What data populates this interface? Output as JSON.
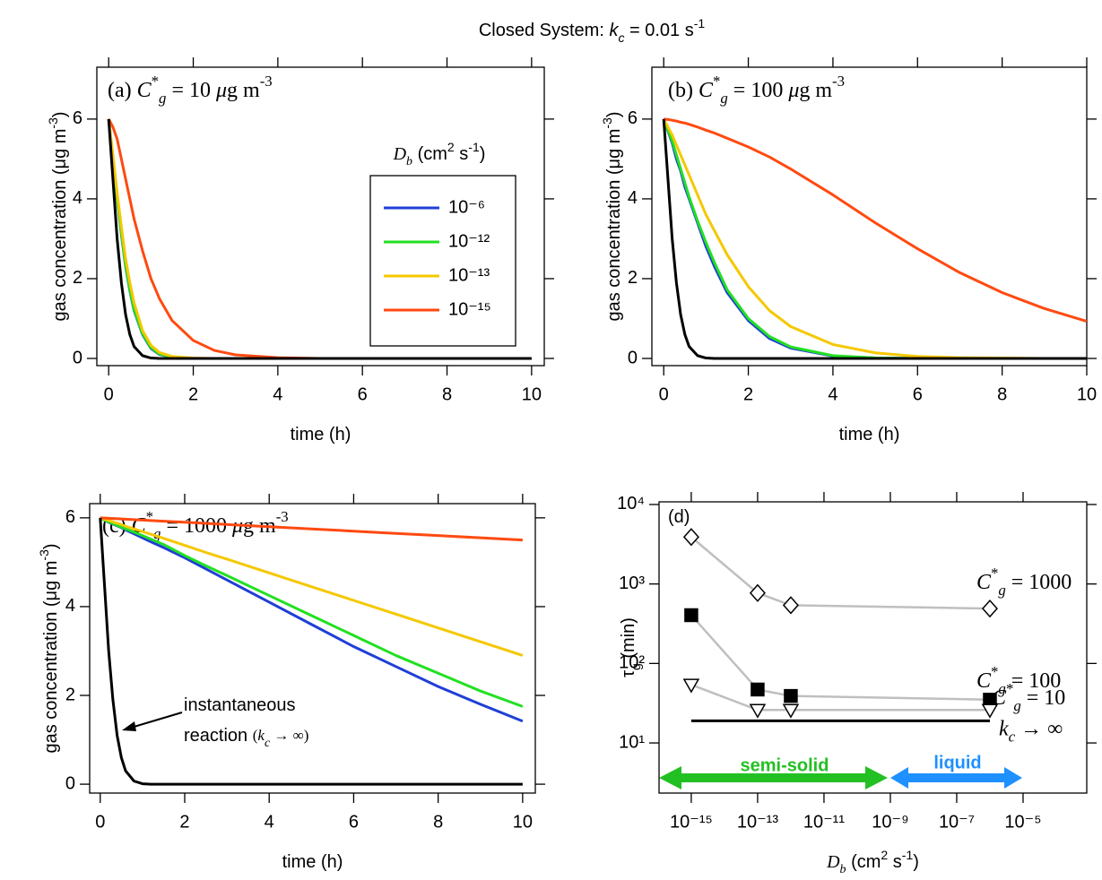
{
  "title": [
    {
      "text": "Closed System: "
    },
    {
      "text": "k",
      "style": "italic"
    },
    {
      "text": "c",
      "style": "italic sub"
    },
    {
      "text": " = 0.01 s"
    },
    {
      "text": "-1",
      "style": "sup"
    }
  ],
  "chart_data": [
    {
      "type": "line",
      "annotation": [
        {
          "text": "(a) "
        },
        {
          "text": "C",
          "style": "italic"
        },
        {
          "text": "*",
          "style": "sup"
        },
        {
          "text": "g",
          "style": "italic sub"
        },
        {
          "text": " = 10 "
        },
        {
          "text": "μ",
          "style": "italic"
        },
        {
          "text": "g m"
        },
        {
          "text": "-3",
          "style": "sup"
        }
      ],
      "xlabel": [
        {
          "text": "time (h)"
        }
      ],
      "ylabel": [
        {
          "text": "gas concentration (μg m"
        },
        {
          "text": "-3",
          "style": "sup"
        },
        {
          "text": ")"
        }
      ],
      "legend_title": [
        {
          "text": "D",
          "style": "italic serif"
        },
        {
          "text": "b",
          "style": "italic serif sub"
        },
        {
          "text": " (cm"
        },
        {
          "text": "2",
          "style": "sup"
        },
        {
          "text": " s"
        },
        {
          "text": "-1",
          "style": "sup"
        },
        {
          "text": ")"
        }
      ],
      "x": [
        0,
        0.1,
        0.2,
        0.3,
        0.4,
        0.5,
        0.6,
        0.8,
        1,
        1.2,
        1.5,
        2,
        2.5,
        3,
        4,
        5,
        6,
        7,
        8,
        9,
        10
      ],
      "series": [
        {
          "name": "10⁻⁶",
          "color": "#1f3fd6",
          "values": [
            6,
            5.0,
            4.0,
            3.1,
            2.3,
            1.7,
            1.2,
            0.6,
            0.25,
            0.1,
            0.03,
            0,
            0,
            0,
            0,
            0,
            0,
            0,
            0,
            0,
            0
          ]
        },
        {
          "name": "10⁻¹²",
          "color": "#22e022",
          "values": [
            6,
            5.02,
            4.03,
            3.13,
            2.33,
            1.73,
            1.23,
            0.62,
            0.27,
            0.11,
            0.03,
            0,
            0,
            0,
            0,
            0,
            0,
            0,
            0,
            0,
            0
          ]
        },
        {
          "name": "10⁻¹³",
          "color": "#f5c800",
          "values": [
            6,
            5.1,
            4.15,
            3.3,
            2.5,
            1.9,
            1.4,
            0.7,
            0.33,
            0.15,
            0.05,
            0.01,
            0,
            0,
            0,
            0,
            0,
            0,
            0,
            0,
            0
          ]
        },
        {
          "name": "10⁻¹⁵",
          "color": "#ff4a10",
          "values": [
            6,
            5.8,
            5.5,
            5.0,
            4.5,
            4.0,
            3.5,
            2.7,
            2.0,
            1.5,
            0.95,
            0.45,
            0.2,
            0.09,
            0.02,
            0,
            0,
            0,
            0,
            0,
            0
          ]
        },
        {
          "color": "#000000",
          "values": [
            6,
            4.5,
            3.0,
            1.9,
            1.1,
            0.6,
            0.3,
            0.07,
            0.01,
            0,
            0,
            0,
            0,
            0,
            0,
            0,
            0,
            0,
            0,
            0,
            0
          ]
        }
      ],
      "xlim": [
        -0.28,
        10.3
      ],
      "ylim": [
        -0.18,
        7.3
      ],
      "xticks": [
        0,
        2,
        4,
        6,
        8,
        10
      ],
      "yticks": [
        0,
        2,
        4,
        6
      ]
    },
    {
      "type": "line",
      "annotation": [
        {
          "text": "(b) "
        },
        {
          "text": "C",
          "style": "italic"
        },
        {
          "text": "*",
          "style": "sup"
        },
        {
          "text": "g",
          "style": "italic sub"
        },
        {
          "text": " = 100 "
        },
        {
          "text": "μ",
          "style": "italic"
        },
        {
          "text": "g m"
        },
        {
          "text": "-3",
          "style": "sup"
        }
      ],
      "xlabel": [
        {
          "text": "time (h)"
        }
      ],
      "ylabel": [
        {
          "text": "gas concentration (μg m"
        },
        {
          "text": "-3",
          "style": "sup"
        },
        {
          "text": ")"
        }
      ],
      "x": [
        0,
        0.1,
        0.2,
        0.3,
        0.4,
        0.5,
        0.6,
        0.8,
        1,
        1.2,
        1.5,
        2,
        2.5,
        3,
        4,
        5,
        6,
        7,
        8,
        9,
        10
      ],
      "series": [
        {
          "color": "#1f3fd6",
          "values": [
            6,
            5.7,
            5.4,
            5.0,
            4.7,
            4.3,
            4.0,
            3.4,
            2.8,
            2.3,
            1.65,
            0.95,
            0.5,
            0.26,
            0.06,
            0.01,
            0,
            0,
            0,
            0,
            0
          ]
        },
        {
          "color": "#22e022",
          "values": [
            6,
            5.72,
            5.45,
            5.1,
            4.75,
            4.4,
            4.05,
            3.45,
            2.9,
            2.4,
            1.72,
            1.0,
            0.55,
            0.29,
            0.07,
            0.015,
            0,
            0,
            0,
            0,
            0
          ]
        },
        {
          "color": "#f5c800",
          "values": [
            6,
            5.8,
            5.6,
            5.35,
            5.1,
            4.85,
            4.6,
            4.1,
            3.6,
            3.2,
            2.6,
            1.8,
            1.2,
            0.8,
            0.35,
            0.14,
            0.05,
            0.02,
            0.01,
            0,
            0
          ]
        },
        {
          "color": "#ff4a10",
          "values": [
            6,
            5.99,
            5.97,
            5.95,
            5.92,
            5.9,
            5.87,
            5.8,
            5.72,
            5.65,
            5.52,
            5.3,
            5.05,
            4.75,
            4.1,
            3.4,
            2.75,
            2.15,
            1.65,
            1.25,
            0.93
          ]
        },
        {
          "color": "#000000",
          "values": [
            6,
            4.5,
            3.0,
            1.9,
            1.1,
            0.6,
            0.3,
            0.07,
            0.01,
            0,
            0,
            0,
            0,
            0,
            0,
            0,
            0,
            0,
            0,
            0,
            0
          ]
        }
      ],
      "xlim": [
        -0.28,
        10
      ],
      "ylim": [
        -0.18,
        7.3
      ],
      "xticks": [
        0,
        2,
        4,
        6,
        8,
        10
      ],
      "yticks": [
        0,
        2,
        4,
        6
      ]
    },
    {
      "type": "line",
      "annotation": [
        {
          "text": "(c) "
        },
        {
          "text": "C",
          "style": "italic"
        },
        {
          "text": "*",
          "style": "sup"
        },
        {
          "text": "g",
          "style": "italic sub"
        },
        {
          "text": " = 1000 "
        },
        {
          "text": "μ",
          "style": "italic"
        },
        {
          "text": "g m"
        },
        {
          "text": "-3",
          "style": "sup"
        }
      ],
      "callout": [
        [
          {
            "text": "instantaneous"
          }
        ],
        [
          {
            "text": "reaction "
          },
          {
            "text": "(",
            "style": "serif small"
          },
          {
            "text": "k",
            "style": "italic serif small"
          },
          {
            "text": "c",
            "style": "italic serif sub"
          },
          {
            "text": " → ∞)",
            "style": "serif small"
          }
        ]
      ],
      "xlabel": [
        {
          "text": "time (h)"
        }
      ],
      "ylabel": [
        {
          "text": "gas concentration (μg m"
        },
        {
          "text": "-3",
          "style": "sup"
        },
        {
          "text": ")"
        }
      ],
      "x": [
        0,
        0.1,
        0.2,
        0.3,
        0.4,
        0.5,
        0.6,
        0.8,
        1,
        1.2,
        1.5,
        2,
        2.5,
        3,
        4,
        5,
        6,
        7,
        8,
        9,
        10
      ],
      "series": [
        {
          "color": "#1f3fd6",
          "values": [
            6,
            5.95,
            5.9,
            5.86,
            5.82,
            5.78,
            5.73,
            5.64,
            5.55,
            5.46,
            5.33,
            5.1,
            4.85,
            4.6,
            4.1,
            3.6,
            3.1,
            2.65,
            2.2,
            1.8,
            1.42
          ]
        },
        {
          "color": "#22e022",
          "values": [
            6,
            5.95,
            5.91,
            5.87,
            5.83,
            5.79,
            5.75,
            5.68,
            5.6,
            5.52,
            5.4,
            5.15,
            4.92,
            4.7,
            4.25,
            3.8,
            3.35,
            2.9,
            2.5,
            2.1,
            1.75
          ]
        },
        {
          "color": "#f5c800",
          "values": [
            6,
            5.97,
            5.94,
            5.91,
            5.88,
            5.85,
            5.81,
            5.75,
            5.69,
            5.63,
            5.54,
            5.38,
            5.22,
            5.07,
            4.76,
            4.45,
            4.14,
            3.83,
            3.52,
            3.21,
            2.9
          ]
        },
        {
          "color": "#ff4a10",
          "values": [
            6,
            5.995,
            5.99,
            5.985,
            5.98,
            5.975,
            5.97,
            5.96,
            5.95,
            5.94,
            5.925,
            5.9,
            5.875,
            5.85,
            5.8,
            5.75,
            5.7,
            5.65,
            5.6,
            5.55,
            5.5
          ]
        },
        {
          "color": "#000000",
          "values": [
            6,
            4.5,
            3.0,
            1.9,
            1.1,
            0.6,
            0.3,
            0.07,
            0.01,
            0,
            0,
            0,
            0,
            0,
            0,
            0,
            0,
            0,
            0,
            0,
            0
          ]
        }
      ],
      "xlim": [
        -0.25,
        10.3
      ],
      "ylim": [
        -0.2,
        6.32
      ],
      "xticks": [
        0,
        2,
        4,
        6,
        8,
        10
      ],
      "yticks": [
        0,
        2,
        4,
        6
      ]
    },
    {
      "type": "scatter",
      "log_x": true,
      "log_y": true,
      "annotation": [
        {
          "text": "(d)"
        }
      ],
      "region_labels": [
        "semi-solid",
        "liquid"
      ],
      "xlabel": [
        {
          "text": "D",
          "style": "italic serif"
        },
        {
          "text": "b",
          "style": "italic serif sub"
        },
        {
          "text": " (cm"
        },
        {
          "text": "2",
          "style": "sup"
        },
        {
          "text": " s"
        },
        {
          "text": "-1",
          "style": "sup"
        },
        {
          "text": ")"
        }
      ],
      "ylabel": [
        {
          "text": "τ"
        },
        {
          "text": "g",
          "style": "sub"
        },
        {
          "text": " (min)"
        }
      ],
      "series": [
        {
          "label": [
            {
              "text": "C",
              "style": "italic"
            },
            {
              "text": "*",
              "style": "sup"
            },
            {
              "text": "g",
              "style": "italic sub"
            },
            {
              "text": " = 1000"
            }
          ],
          "marker": "diamond",
          "marker_fill": "#ffffff",
          "color": "#000000",
          "line_color": "#bfbfbf",
          "x": [
            1e-15,
            1e-13,
            1e-12,
            1e-06
          ],
          "values": [
            3900,
            770,
            540,
            490
          ]
        },
        {
          "label": [
            {
              "text": "C",
              "style": "italic"
            },
            {
              "text": "*",
              "style": "sup"
            },
            {
              "text": "g",
              "style": "italic sub"
            },
            {
              "text": " = 100"
            }
          ],
          "marker": "square",
          "marker_fill": "#000000",
          "color": "#000000",
          "line_color": "#bfbfbf",
          "x": [
            1e-15,
            1e-13,
            1e-12,
            1e-06
          ],
          "values": [
            405,
            47,
            39,
            35
          ]
        },
        {
          "label": [
            {
              "text": "C",
              "style": "italic"
            },
            {
              "text": "*",
              "style": "sup"
            },
            {
              "text": "g",
              "style": "italic sub"
            },
            {
              "text": " = 10"
            }
          ],
          "marker": "triangle-down",
          "marker_fill": "#ffffff",
          "color": "#000000",
          "line_color": "#bfbfbf",
          "x": [
            1e-15,
            1e-13,
            1e-12,
            1e-06
          ],
          "values": [
            54,
            26,
            26,
            26
          ]
        },
        {
          "label": [
            {
              "text": "k",
              "style": "italic"
            },
            {
              "text": "c",
              "style": "italic sub"
            },
            {
              "text": " → ∞"
            }
          ],
          "color": "#000000",
          "x": [
            1e-15,
            1e-06
          ],
          "values": [
            19,
            19
          ]
        }
      ],
      "xlim": [
        1.07e-16,
        0.00083
      ],
      "ylim": [
        2.34,
        10800
      ],
      "xticks": [
        {
          "value": 1e-15,
          "label": "10⁻¹⁵"
        },
        {
          "value": 1e-13,
          "label": "10⁻¹³"
        },
        {
          "value": 1e-11,
          "label": "10⁻¹¹"
        },
        {
          "value": 1e-09,
          "label": "10⁻⁹"
        },
        {
          "value": 1e-07,
          "label": "10⁻⁷"
        },
        {
          "value": 1e-05,
          "label": "10⁻⁵"
        }
      ],
      "yticks": [
        {
          "value": 10,
          "label": "10¹"
        },
        {
          "value": 100,
          "label": "10²"
        },
        {
          "value": 1000,
          "label": "10³"
        },
        {
          "value": 10000,
          "label": "10⁴"
        }
      ]
    }
  ]
}
